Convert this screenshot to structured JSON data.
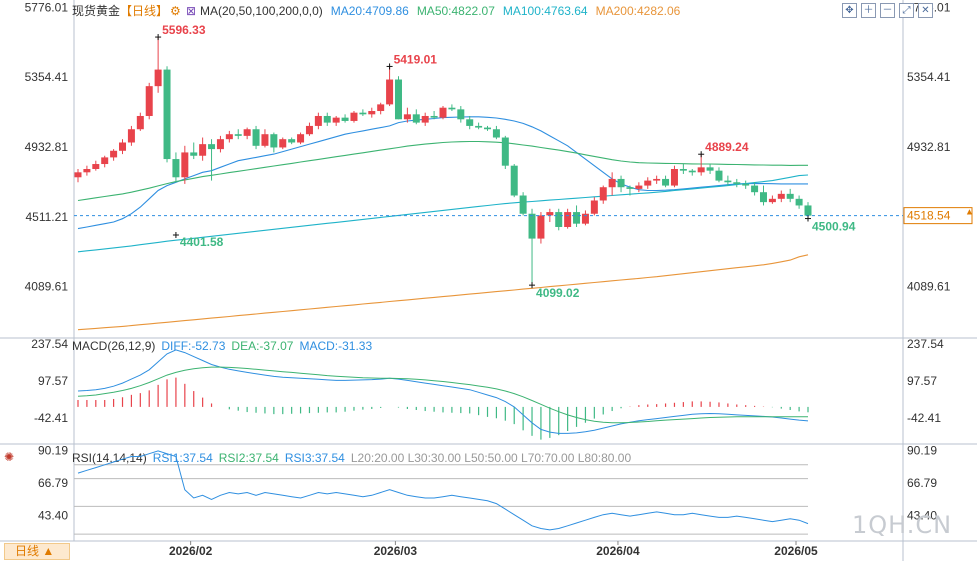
{
  "header": {
    "instrument": "现货黄金",
    "period": "【日线】",
    "ma_label": "MA(20,50,100,200,0,0)",
    "ma_values": [
      {
        "text": "MA20:4709.86",
        "color": "#2f8fe0"
      },
      {
        "text": "MA50:4822.07",
        "color": "#3cb371"
      },
      {
        "text": "MA100:4763.64",
        "color": "#1fb3c9"
      },
      {
        "text": "MA200:4282.06",
        "color": "#e8953a"
      }
    ]
  },
  "toolbar": {
    "icons": [
      "crosshair-icon",
      "zoom-in-icon",
      "zoom-out-icon",
      "restore-icon",
      "close-icon"
    ]
  },
  "price_axis": {
    "labels": [
      "5776.01",
      "5354.41",
      "4932.81",
      "4511.21",
      "4089.61"
    ],
    "current_price": "4518.54"
  },
  "annotations": {
    "high1": "5596.33",
    "low1": "4401.58",
    "high2": "5419.01",
    "low2": "4099.02",
    "high3": "4889.24",
    "last": "4500.94"
  },
  "macd": {
    "label": "MACD(26,12,9)",
    "diff": "DIFF:-52.73",
    "dea": "DEA:-37.07",
    "macd": "MACD:-31.33",
    "labels": [
      "237.54",
      "97.57",
      "-42.41"
    ]
  },
  "rsi": {
    "label": "RSI(14,14,14)",
    "rsi1": "RSI1:37.54",
    "rsi2": "RSI2:37.54",
    "rsi3": "RSI3:37.54",
    "levels": "L20:20.00  L30:30.00  L50:50.00  L70:70.00  L80:80.00",
    "labels": [
      "90.19",
      "66.79",
      "43.40"
    ]
  },
  "x_axis": {
    "labels": [
      "2026/02",
      "2026/03",
      "2026/04",
      "2026/05"
    ]
  },
  "period_button": "日线 ▲",
  "watermark": "1QH.CN",
  "colors": {
    "up": "#e8434b",
    "down": "#3fb985",
    "price_line": "#e07b00"
  },
  "chart_data": {
    "type": "candlestick",
    "ylim": [
      3780,
      5820
    ],
    "x_labels": [
      "2026/02",
      "2026/03",
      "2026/04",
      "2026/05"
    ],
    "candles": [
      [
        4750,
        4800,
        4720,
        4780
      ],
      [
        4780,
        4820,
        4760,
        4800
      ],
      [
        4800,
        4850,
        4790,
        4830
      ],
      [
        4830,
        4880,
        4810,
        4870
      ],
      [
        4870,
        4920,
        4850,
        4910
      ],
      [
        4910,
        4980,
        4890,
        4960
      ],
      [
        4960,
        5060,
        4940,
        5040
      ],
      [
        5040,
        5140,
        5030,
        5120
      ],
      [
        5120,
        5320,
        5100,
        5300
      ],
      [
        5300,
        5596.33,
        5260,
        5400
      ],
      [
        5400,
        5420,
        4840,
        4860
      ],
      [
        4860,
        4900,
        4720,
        4750
      ],
      [
        4750,
        4940,
        4710,
        4900
      ],
      [
        4900,
        4960,
        4860,
        4880
      ],
      [
        4880,
        4990,
        4850,
        4950
      ],
      [
        4950,
        4980,
        4730,
        4920
      ],
      [
        4920,
        5000,
        4900,
        4980
      ],
      [
        4980,
        5030,
        4960,
        5010
      ],
      [
        5010,
        5040,
        4980,
        5000
      ],
      [
        5000,
        5050,
        4980,
        5040
      ],
      [
        5040,
        5060,
        4920,
        4940
      ],
      [
        4940,
        5040,
        4930,
        5010
      ],
      [
        5010,
        5020,
        4900,
        4930
      ],
      [
        4930,
        4990,
        4920,
        4980
      ],
      [
        4980,
        4990,
        4950,
        4960
      ],
      [
        4960,
        5020,
        4950,
        5010
      ],
      [
        5010,
        5080,
        5000,
        5060
      ],
      [
        5060,
        5140,
        5040,
        5120
      ],
      [
        5120,
        5140,
        5060,
        5080
      ],
      [
        5080,
        5120,
        5060,
        5110
      ],
      [
        5110,
        5130,
        5080,
        5090
      ],
      [
        5090,
        5150,
        5080,
        5140
      ],
      [
        5140,
        5160,
        5120,
        5130
      ],
      [
        5130,
        5170,
        5110,
        5150
      ],
      [
        5150,
        5200,
        5130,
        5190
      ],
      [
        5190,
        5419.01,
        5180,
        5340
      ],
      [
        5340,
        5360,
        5100,
        5100
      ],
      [
        5100,
        5170,
        5080,
        5130
      ],
      [
        5130,
        5160,
        5070,
        5080
      ],
      [
        5080,
        5140,
        5060,
        5120
      ],
      [
        5120,
        5150,
        5100,
        5110
      ],
      [
        5110,
        5180,
        5100,
        5170
      ],
      [
        5170,
        5190,
        5150,
        5160
      ],
      [
        5160,
        5180,
        5080,
        5100
      ],
      [
        5100,
        5120,
        5040,
        5060
      ],
      [
        5060,
        5080,
        5040,
        5050
      ],
      [
        5050,
        5060,
        5030,
        5040
      ],
      [
        5040,
        5060,
        4980,
        4990
      ],
      [
        4990,
        5000,
        4800,
        4820
      ],
      [
        4820,
        4830,
        4630,
        4640
      ],
      [
        4640,
        4660,
        4520,
        4530
      ],
      [
        4530,
        4560,
        4099.02,
        4380
      ],
      [
        4380,
        4540,
        4350,
        4520
      ],
      [
        4520,
        4560,
        4480,
        4540
      ],
      [
        4540,
        4560,
        4430,
        4450
      ],
      [
        4450,
        4560,
        4440,
        4540
      ],
      [
        4540,
        4580,
        4450,
        4470
      ],
      [
        4470,
        4550,
        4460,
        4530
      ],
      [
        4530,
        4630,
        4520,
        4610
      ],
      [
        4610,
        4700,
        4590,
        4690
      ],
      [
        4690,
        4780,
        4640,
        4740
      ],
      [
        4740,
        4760,
        4660,
        4690
      ],
      [
        4690,
        4700,
        4640,
        4680
      ],
      [
        4680,
        4720,
        4660,
        4700
      ],
      [
        4700,
        4750,
        4680,
        4730
      ],
      [
        4730,
        4760,
        4710,
        4740
      ],
      [
        4740,
        4760,
        4690,
        4700
      ],
      [
        4700,
        4820,
        4690,
        4800
      ],
      [
        4800,
        4830,
        4770,
        4790
      ],
      [
        4790,
        4800,
        4760,
        4780
      ],
      [
        4780,
        4889.24,
        4760,
        4810
      ],
      [
        4810,
        4830,
        4770,
        4790
      ],
      [
        4790,
        4810,
        4720,
        4730
      ],
      [
        4730,
        4760,
        4700,
        4720
      ],
      [
        4720,
        4740,
        4690,
        4710
      ],
      [
        4710,
        4730,
        4680,
        4700
      ],
      [
        4700,
        4720,
        4640,
        4660
      ],
      [
        4660,
        4700,
        4580,
        4600
      ],
      [
        4600,
        4640,
        4590,
        4620
      ],
      [
        4620,
        4670,
        4600,
        4650
      ],
      [
        4650,
        4680,
        4600,
        4620
      ],
      [
        4620,
        4640,
        4560,
        4580
      ],
      [
        4580,
        4600,
        4500.94,
        4518.54
      ]
    ],
    "series": [
      {
        "name": "MA20",
        "color": "#2f8fe0",
        "values": [
          4440,
          4450,
          4460,
          4470,
          4480,
          4500,
          4530,
          4570,
          4620,
          4670,
          4700,
          4720,
          4740,
          4760,
          4780,
          4790,
          4810,
          4830,
          4850,
          4860,
          4870,
          4880,
          4890,
          4905,
          4920,
          4935,
          4950,
          4965,
          4980,
          4995,
          5010,
          5020,
          5030,
          5040,
          5050,
          5060,
          5080,
          5090,
          5095,
          5100,
          5105,
          5110,
          5112,
          5114,
          5115,
          5115,
          5112,
          5108,
          5100,
          5090,
          5075,
          5055,
          5030,
          5000,
          4970,
          4940,
          4900,
          4860,
          4820,
          4780,
          4740,
          4710,
          4690,
          4675,
          4670,
          4670,
          4672,
          4675,
          4680,
          4685,
          4690,
          4695,
          4700,
          4705,
          4710,
          4712,
          4712,
          4712,
          4711,
          4710,
          4710,
          4709.86,
          4709.86
        ]
      },
      {
        "name": "MA50",
        "color": "#3cb371",
        "values": [
          4610,
          4618,
          4626,
          4634,
          4642,
          4650,
          4660,
          4672,
          4684,
          4698,
          4712,
          4724,
          4734,
          4744,
          4754,
          4762,
          4770,
          4778,
          4786,
          4794,
          4802,
          4810,
          4818,
          4826,
          4834,
          4842,
          4850,
          4858,
          4866,
          4874,
          4882,
          4890,
          4898,
          4906,
          4914,
          4922,
          4930,
          4938,
          4944,
          4950,
          4955,
          4960,
          4963,
          4965,
          4966,
          4966,
          4964,
          4962,
          4958,
          4952,
          4945,
          4938,
          4930,
          4922,
          4914,
          4905,
          4896,
          4886,
          4876,
          4866,
          4856,
          4848,
          4842,
          4838,
          4836,
          4835,
          4834,
          4833,
          4832,
          4831,
          4830,
          4830,
          4829,
          4828,
          4827,
          4826,
          4825,
          4824,
          4823,
          4823,
          4822,
          4822.07,
          4822.07
        ]
      },
      {
        "name": "MA100",
        "color": "#1fb3c9",
        "values": [
          4300,
          4306,
          4312,
          4318,
          4324,
          4330,
          4336,
          4343,
          4350,
          4357,
          4364,
          4370,
          4376,
          4382,
          4388,
          4394,
          4400,
          4406,
          4412,
          4418,
          4424,
          4430,
          4436,
          4442,
          4448,
          4454,
          4460,
          4466,
          4472,
          4478,
          4484,
          4490,
          4496,
          4502,
          4508,
          4514,
          4520,
          4526,
          4532,
          4538,
          4544,
          4550,
          4556,
          4562,
          4568,
          4574,
          4580,
          4586,
          4591,
          4596,
          4600,
          4604,
          4608,
          4612,
          4616,
          4620,
          4624,
          4628,
          4632,
          4636,
          4640,
          4644,
          4648,
          4652,
          4656,
          4660,
          4665,
          4670,
          4675,
          4680,
          4685,
          4690,
          4695,
          4700,
          4706,
          4712,
          4718,
          4724,
          4730,
          4740,
          4750,
          4760,
          4763.64
        ]
      },
      {
        "name": "MA200",
        "color": "#e8953a",
        "values": [
          3830,
          3834,
          3838,
          3842,
          3846,
          3850,
          3855,
          3860,
          3865,
          3870,
          3875,
          3880,
          3885,
          3890,
          3895,
          3900,
          3905,
          3910,
          3915,
          3920,
          3925,
          3930,
          3935,
          3940,
          3945,
          3950,
          3955,
          3960,
          3965,
          3970,
          3975,
          3980,
          3985,
          3990,
          3995,
          4000,
          4005,
          4010,
          4015,
          4020,
          4025,
          4030,
          4035,
          4040,
          4045,
          4050,
          4055,
          4060,
          4065,
          4070,
          4075,
          4080,
          4085,
          4090,
          4095,
          4100,
          4105,
          4110,
          4115,
          4120,
          4125,
          4130,
          4135,
          4140,
          4145,
          4150,
          4156,
          4162,
          4168,
          4174,
          4180,
          4186,
          4192,
          4198,
          4204,
          4210,
          4216,
          4222,
          4230,
          4240,
          4250,
          4270,
          4282.06
        ]
      }
    ],
    "macd_ylim": [
      -140,
      260
    ],
    "macd_diff": [
      60,
      62,
      65,
      70,
      78,
      90,
      105,
      120,
      140,
      170,
      200,
      215,
      205,
      190,
      175,
      160,
      150,
      142,
      136,
      130,
      125,
      120,
      115,
      112,
      110,
      108,
      106,
      104,
      102,
      100,
      100,
      101,
      102,
      103,
      105,
      108,
      105,
      100,
      95,
      90,
      85,
      80,
      75,
      70,
      65,
      55,
      45,
      35,
      20,
      0,
      -30,
      -60,
      -85,
      -95,
      -100,
      -100,
      -98,
      -94,
      -88,
      -80,
      -72,
      -64,
      -58,
      -52,
      -48,
      -44,
      -40,
      -36,
      -32,
      -28,
      -26,
      -25,
      -26,
      -28,
      -30,
      -32,
      -34,
      -36,
      -38,
      -42,
      -46,
      -50,
      -52.73
    ],
    "macd_dea": [
      40,
      42,
      45,
      50,
      55,
      62,
      70,
      80,
      92,
      106,
      120,
      130,
      138,
      144,
      148,
      150,
      150,
      149,
      147,
      145,
      142,
      139,
      136,
      133,
      130,
      127,
      124,
      121,
      118,
      116,
      114,
      112,
      110,
      109,
      108,
      108,
      107,
      106,
      104,
      102,
      99,
      96,
      92,
      88,
      84,
      79,
      74,
      68,
      60,
      50,
      38,
      24,
      10,
      -5,
      -18,
      -30,
      -40,
      -48,
      -54,
      -58,
      -60,
      -60,
      -59,
      -57,
      -55,
      -52,
      -50,
      -48,
      -46,
      -44,
      -42,
      -40,
      -39,
      -38,
      -37,
      -37,
      -37,
      -37,
      -37,
      -37,
      -37,
      -37,
      -37.07
    ],
    "rsi_ylim": [
      25,
      95
    ],
    "rsi1": [
      74,
      76,
      78,
      80,
      82,
      84,
      86,
      86,
      88,
      90,
      88,
      86,
      62,
      56,
      58,
      55,
      58,
      60,
      59,
      60,
      58,
      60,
      59,
      58,
      57,
      56,
      58,
      60,
      59,
      60,
      59,
      58,
      57,
      58,
      60,
      62,
      60,
      58,
      57,
      56,
      56,
      57,
      58,
      57,
      56,
      55,
      54,
      52,
      48,
      44,
      40,
      36,
      34,
      33,
      34,
      36,
      38,
      40,
      42,
      44,
      45,
      44,
      43,
      44,
      45,
      46,
      45,
      44,
      44,
      45,
      44,
      43,
      42,
      42,
      43,
      42,
      41,
      40,
      39,
      40,
      41,
      40,
      37.54
    ]
  }
}
